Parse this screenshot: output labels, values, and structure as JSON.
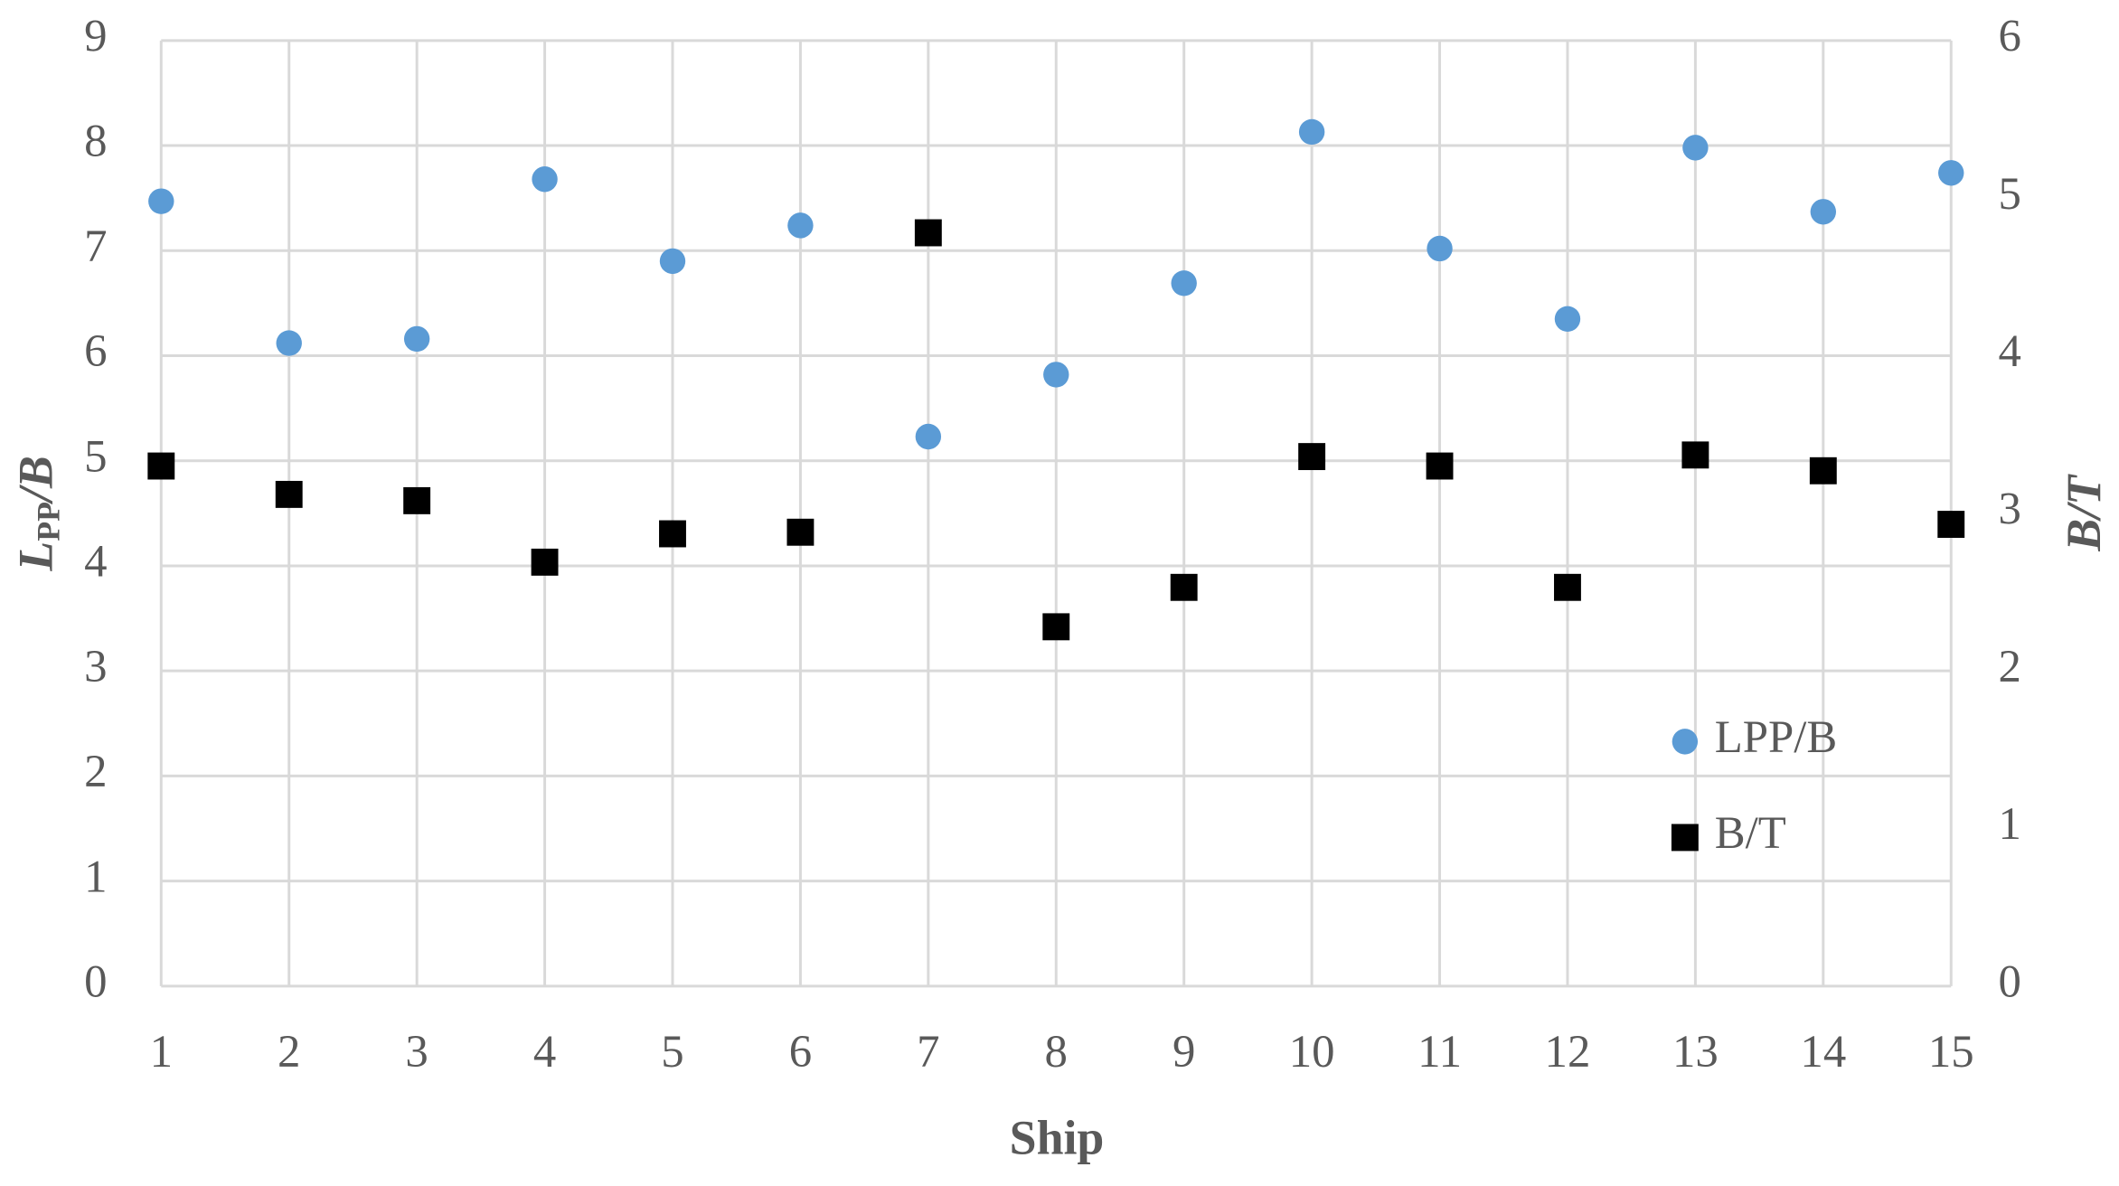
{
  "chart_data": {
    "type": "scatter",
    "x_label": "Ship",
    "y_label": [
      "L",
      "PP",
      "/B"
    ],
    "y2_label": "B/T",
    "x": [
      1,
      2,
      3,
      4,
      5,
      6,
      7,
      8,
      9,
      10,
      11,
      12,
      13,
      14,
      15
    ],
    "xlim": [
      1,
      15
    ],
    "xticks": [
      1,
      2,
      3,
      4,
      5,
      6,
      7,
      8,
      9,
      10,
      11,
      12,
      13,
      14,
      15
    ],
    "ylim": [
      0,
      9
    ],
    "yticks": [
      0,
      1,
      2,
      3,
      4,
      5,
      6,
      7,
      8,
      9
    ],
    "y2lim": [
      0,
      6
    ],
    "y2ticks": [
      0,
      1,
      2,
      3,
      4,
      5,
      6
    ],
    "grid": true,
    "legend": "right",
    "series": [
      {
        "name": "LPP/B",
        "color": "#5b9bd5",
        "marker": "circle",
        "values": [
          7.47,
          6.12,
          6.16,
          7.68,
          6.9,
          7.24,
          5.23,
          5.82,
          6.69,
          8.13,
          7.02,
          6.35,
          7.98,
          7.37,
          7.74
        ]
      },
      {
        "name": "B/T",
        "color": "#000000",
        "marker": "square",
        "axis": "y2",
        "values": [
          3.3,
          3.12,
          3.08,
          2.69,
          2.87,
          2.88,
          4.78,
          2.28,
          2.53,
          3.36,
          3.3,
          2.53,
          3.37,
          3.27,
          2.93
        ]
      }
    ]
  }
}
